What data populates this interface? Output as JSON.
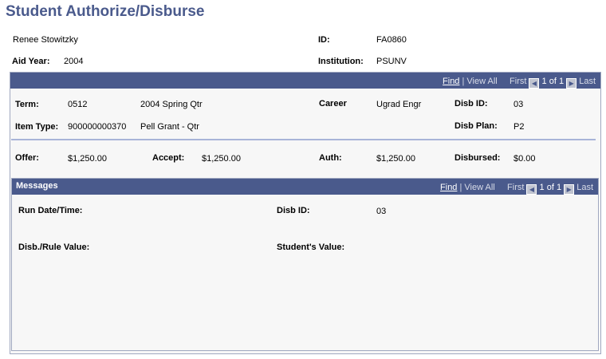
{
  "title": "Student Authorize/Disburse",
  "student": {
    "name": "Renee Stowitzky",
    "id_label": "ID:",
    "id": "FA0860",
    "aid_year_label": "Aid Year:",
    "aid_year": "2004",
    "institution_label": "Institution:",
    "institution": "PSUNV"
  },
  "nav": {
    "find": "Find",
    "sep": "|",
    "view_all": "View All",
    "first": "First",
    "count": "1 of 1",
    "last": "Last"
  },
  "disb": {
    "term_label": "Term:",
    "term": "0512",
    "term_desc": "2004 Spring Qtr",
    "career_label": "Career",
    "career": "Ugrad Engr",
    "disb_id_label": "Disb ID:",
    "disb_id": "03",
    "item_type_label": "Item Type:",
    "item_type": "900000000370",
    "item_desc": "Pell Grant - Qtr",
    "disb_plan_label": "Disb Plan:",
    "disb_plan": "P2",
    "offer_label": "Offer:",
    "offer": "$1,250.00",
    "accept_label": "Accept:",
    "accept": "$1,250.00",
    "auth_label": "Auth:",
    "auth": "$1,250.00",
    "disbursed_label": "Disbursed:",
    "disbursed": "$0.00"
  },
  "messages": {
    "title": "Messages",
    "run_label": "Run Date/Time:",
    "disb_id_label": "Disb ID:",
    "disb_id": "03",
    "rule_label": "Disb./Rule Value:",
    "student_label": "Student's Value:"
  },
  "colors": {
    "header": "#4a5a8c",
    "panel": "#f7f7f7"
  }
}
